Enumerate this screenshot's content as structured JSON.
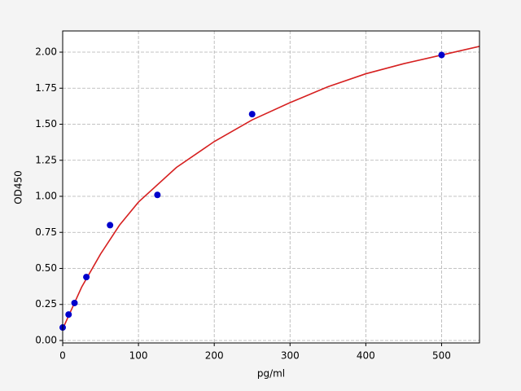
{
  "chart_data": {
    "type": "scatter",
    "x_label": "pg/ml",
    "y_label": "OD450",
    "xlim": [
      0,
      550
    ],
    "ylim": [
      -0.017,
      2.147
    ],
    "xticks": [
      0,
      100,
      200,
      300,
      400,
      500
    ],
    "yticks": [
      {
        "value": 0,
        "label": "0.00"
      },
      {
        "value": 0.25,
        "label": "0.25"
      },
      {
        "value": 0.5,
        "label": "0.50"
      },
      {
        "value": 0.75,
        "label": "0.75"
      },
      {
        "value": 1,
        "label": "1.00"
      },
      {
        "value": 1.25,
        "label": "1.25"
      },
      {
        "value": 1.5,
        "label": "1.50"
      },
      {
        "value": 1.75,
        "label": "1.75"
      },
      {
        "value": 2,
        "label": "2.00"
      }
    ],
    "grid": true,
    "series": [
      {
        "type": "line",
        "color": "#d62020",
        "x": [
          0,
          25,
          50,
          75,
          100,
          150,
          200,
          250,
          300,
          350,
          400,
          450,
          500,
          550
        ],
        "values": [
          0.08,
          0.37,
          0.6,
          0.8,
          0.96,
          1.2,
          1.38,
          1.53,
          1.65,
          1.76,
          1.85,
          1.92,
          1.98,
          2.04
        ]
      },
      {
        "type": "scatter",
        "color": "#0000cc",
        "x": [
          0,
          7.8,
          15.6,
          31.25,
          62.5,
          125,
          250,
          500
        ],
        "values": [
          0.09,
          0.18,
          0.26,
          0.44,
          0.8,
          1.01,
          1.57,
          1.98
        ]
      }
    ]
  }
}
